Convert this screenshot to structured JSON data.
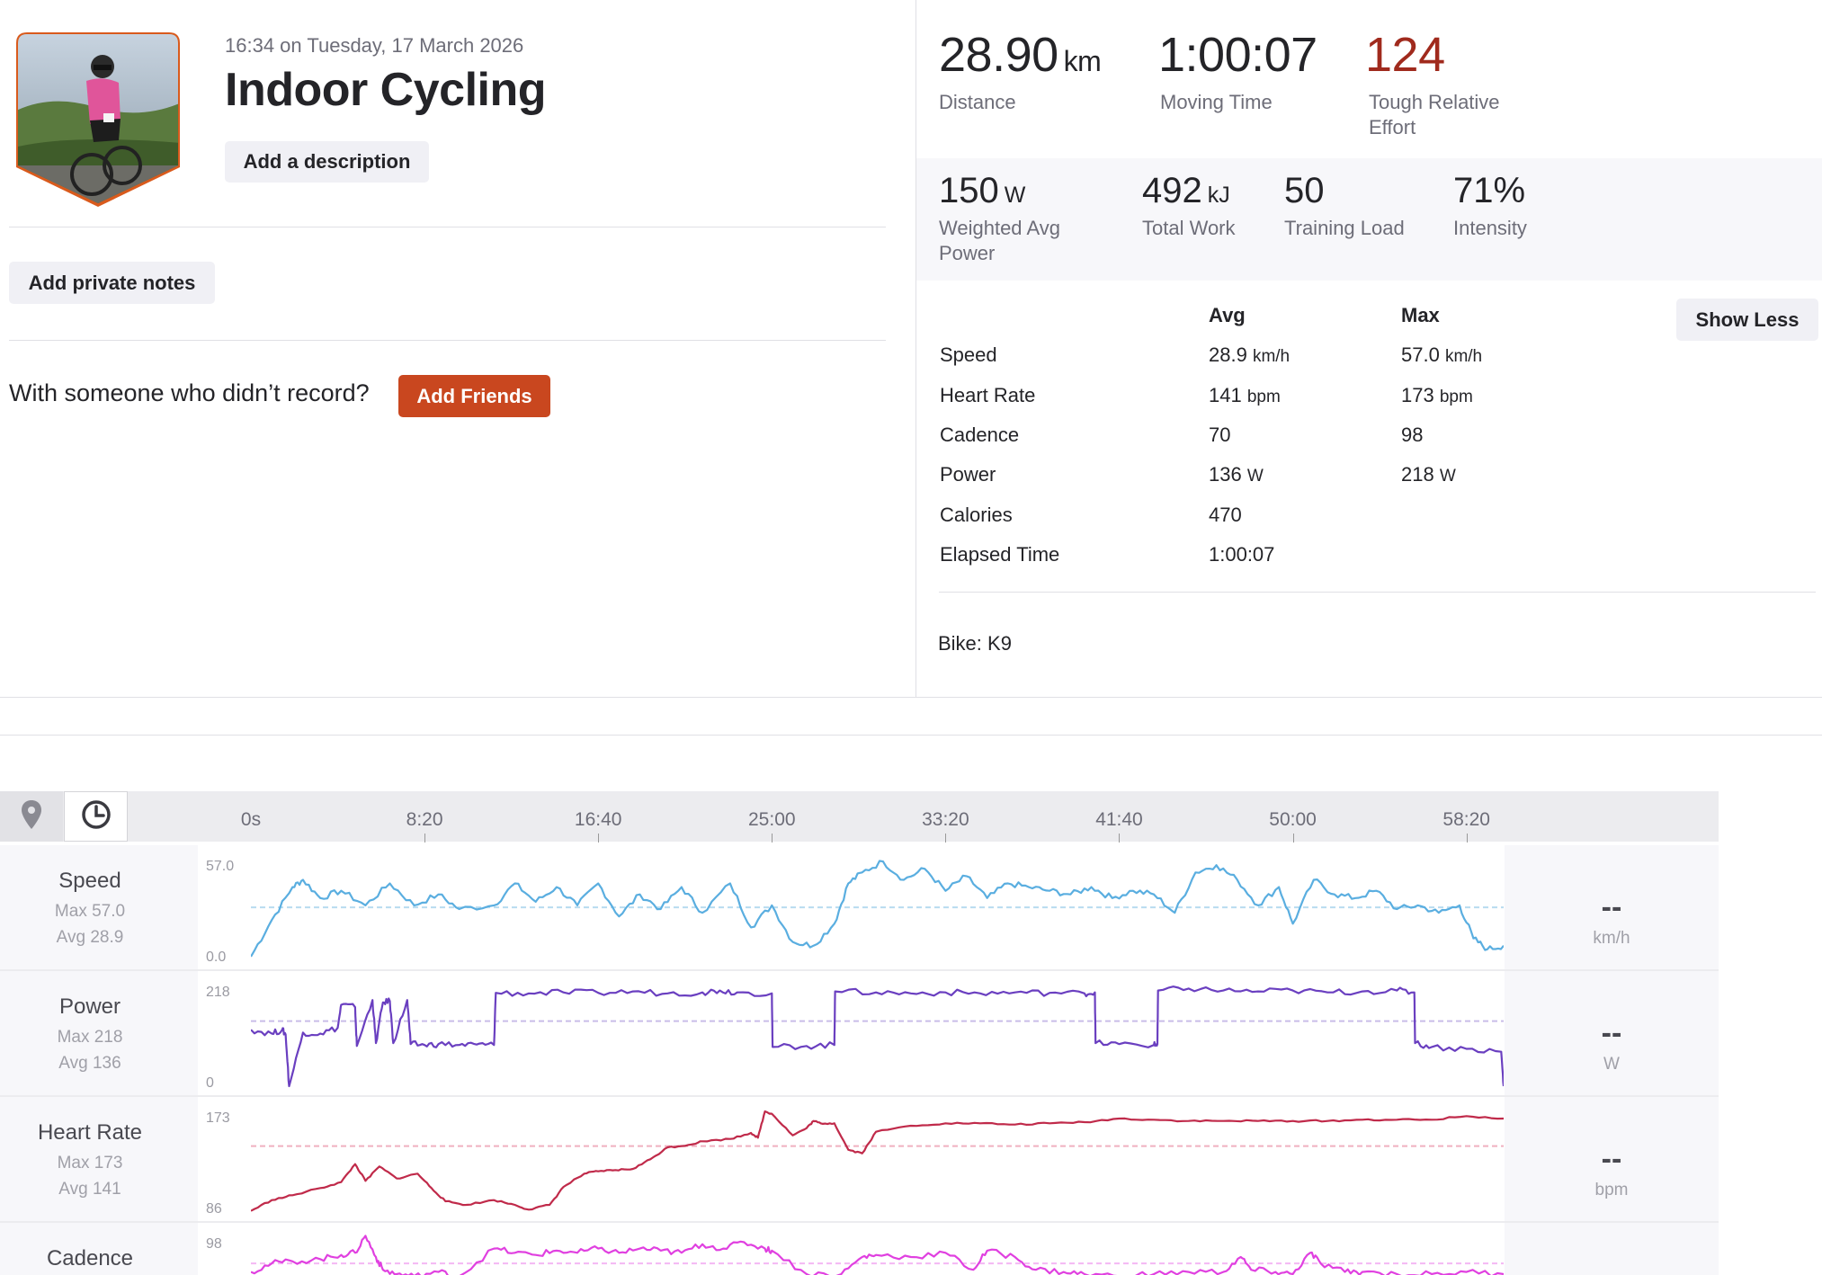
{
  "activity": {
    "datetime": "16:34 on Tuesday, 17 March 2026",
    "title": "Indoor Cycling",
    "add_description_label": "Add a description",
    "add_private_notes_label": "Add private notes",
    "friends_prompt": "With someone who didn’t record?",
    "add_friends_label": "Add Friends"
  },
  "primary_stats": [
    {
      "value": "28.90",
      "unit": "km",
      "label": "Distance"
    },
    {
      "value": "1:00:07",
      "unit": "",
      "label": "Moving Time"
    },
    {
      "value": "124",
      "unit": "",
      "label": "Tough Relative Effort",
      "color": "#a02a1d"
    }
  ],
  "secondary_stats": [
    {
      "value": "150",
      "unit": "W",
      "label": "Weighted Avg Power"
    },
    {
      "value": "492",
      "unit": "kJ",
      "label": "Total Work"
    },
    {
      "value": "50",
      "unit": "",
      "label": "Training Load"
    },
    {
      "value": "71%",
      "unit": "",
      "label": "Intensity"
    }
  ],
  "details_table": {
    "avg_header": "Avg",
    "max_header": "Max",
    "show_less_label": "Show Less",
    "rows": [
      {
        "label": "Speed",
        "avg": "28.9",
        "avg_unit": "km/h",
        "max": "57.0",
        "max_unit": "km/h"
      },
      {
        "label": "Heart Rate",
        "avg": "141",
        "avg_unit": "bpm",
        "max": "173",
        "max_unit": "bpm"
      },
      {
        "label": "Cadence",
        "avg": "70",
        "avg_unit": "",
        "max": "98",
        "max_unit": ""
      },
      {
        "label": "Power",
        "avg": "136",
        "avg_unit": "W",
        "max": "218",
        "max_unit": "W"
      },
      {
        "label": "Calories",
        "avg": "470",
        "avg_unit": "",
        "max": "",
        "max_unit": ""
      },
      {
        "label": "Elapsed Time",
        "avg": "1:00:07",
        "avg_unit": "",
        "max": "",
        "max_unit": ""
      }
    ],
    "bike": "Bike: K9"
  },
  "chart_toolbar": {
    "icons": [
      "map-pin-icon",
      "clock-icon"
    ]
  },
  "chart_data": {
    "type": "line",
    "x_unit": "elapsed time (s)",
    "x_range": [
      0,
      3607
    ],
    "x_tick_labels": [
      "0s",
      "8:20",
      "16:40",
      "25:00",
      "33:20",
      "41:40",
      "50:00",
      "58:20"
    ],
    "x_ticks": [
      0,
      500,
      1000,
      1500,
      2000,
      2500,
      3000,
      3500
    ],
    "series": [
      {
        "name": "Speed",
        "max_label": "Max 57.0",
        "avg_label": "Avg 28.9",
        "ymin": 0.0,
        "ymax": 57.0,
        "ymin_label": "0.0",
        "ymax_label": "57.0",
        "avg": 28.9,
        "unit": "km/h",
        "current": "--",
        "color": "#5aaee0",
        "avg_color": "#b8dcf0",
        "x": [
          0,
          60,
          120,
          150,
          200,
          260,
          330,
          400,
          470,
          540,
          600,
          700,
          760,
          820,
          880,
          940,
          1000,
          1060,
          1120,
          1180,
          1240,
          1300,
          1380,
          1440,
          1500,
          1560,
          1620,
          1680,
          1720,
          1760,
          1820,
          1880,
          1940,
          2000,
          2060,
          2120,
          2180,
          2240,
          2300,
          2360,
          2420,
          2480,
          2540,
          2600,
          2660,
          2720,
          2780,
          2840,
          2900,
          2960,
          3000,
          3060,
          3120,
          3180,
          3240,
          3300,
          3360,
          3420,
          3480,
          3520,
          3560,
          3607
        ],
        "y": [
          2,
          22,
          40,
          44,
          34,
          38,
          30,
          42,
          30,
          36,
          28,
          30,
          42,
          32,
          40,
          30,
          42,
          24,
          36,
          28,
          40,
          26,
          42,
          18,
          30,
          10,
          8,
          20,
          42,
          48,
          54,
          44,
          50,
          38,
          46,
          34,
          42,
          40,
          38,
          36,
          40,
          34,
          38,
          36,
          26,
          48,
          52,
          44,
          30,
          40,
          20,
          44,
          36,
          34,
          38,
          28,
          30,
          26,
          30,
          12,
          6,
          8
        ]
      },
      {
        "name": "Power",
        "max_label": "Max 218",
        "avg_label": "Avg 136",
        "ymin": 0,
        "ymax": 218,
        "ymin_label": "0",
        "ymax_label": "218",
        "avg": 136,
        "unit": "W",
        "current": "--",
        "color": "#6a3fc0",
        "avg_color": "#c9bde8",
        "x": [
          0,
          60,
          90,
          100,
          110,
          150,
          200,
          250,
          260,
          300,
          305,
          350,
          360,
          380,
          400,
          410,
          450,
          460,
          500,
          540,
          600,
          650,
          700,
          705,
          800,
          900,
          1000,
          1100,
          1200,
          1300,
          1350,
          1400,
          1500,
          1502,
          1600,
          1680,
          1682,
          1800,
          1900,
          2000,
          2100,
          2200,
          2300,
          2400,
          2430,
          2432,
          2500,
          2600,
          2610,
          2612,
          2700,
          2800,
          2900,
          3000,
          3100,
          3200,
          3300,
          3350,
          3352,
          3400,
          3500,
          3600,
          3607
        ],
        "y": [
          118,
          110,
          118,
          108,
          0,
          112,
          110,
          122,
          170,
          165,
          84,
          180,
          90,
          175,
          178,
          90,
          180,
          88,
          86,
          88,
          86,
          87,
          86,
          195,
          194,
          196,
          195,
          198,
          194,
          196,
          200,
          196,
          194,
          82,
          84,
          86,
          198,
          196,
          194,
          196,
          194,
          196,
          195,
          194,
          196,
          90,
          88,
          86,
          88,
          200,
          204,
          200,
          198,
          200,
          196,
          198,
          200,
          196,
          90,
          82,
          78,
          72,
          0
        ]
      },
      {
        "name": "Heart Rate",
        "max_label": "Max 173",
        "avg_label": "Avg 141",
        "ymin": 86,
        "ymax": 173,
        "ymin_label": "86",
        "ymax_label": "173",
        "avg": 141,
        "unit": "bpm",
        "current": "--",
        "color": "#c02a4a",
        "avg_color": "#f0b0c0",
        "x": [
          0,
          60,
          120,
          200,
          260,
          300,
          330,
          370,
          420,
          480,
          520,
          560,
          620,
          700,
          760,
          800,
          860,
          900,
          960,
          1000,
          1050,
          1100,
          1150,
          1200,
          1260,
          1300,
          1380,
          1440,
          1460,
          1480,
          1500,
          1560,
          1600,
          1620,
          1640,
          1680,
          1720,
          1760,
          1800,
          1900,
          2000,
          2100,
          2200,
          2300,
          2400,
          2500,
          2600,
          2700,
          2800,
          2900,
          3000,
          3100,
          3200,
          3300,
          3400,
          3500,
          3607
        ],
        "y": [
          87,
          96,
          100,
          106,
          111,
          126,
          112,
          124,
          114,
          118,
          106,
          95,
          92,
          96,
          92,
          88,
          92,
          107,
          118,
          120,
          121,
          122,
          130,
          140,
          142,
          145,
          147,
          152,
          148,
          170,
          168,
          150,
          156,
          162,
          160,
          160,
          138,
          135,
          153,
          158,
          160,
          160,
          159,
          160,
          161,
          164,
          163,
          162,
          162,
          162,
          162,
          162,
          163,
          163,
          163,
          166,
          164
        ]
      },
      {
        "name": "Cadence",
        "max_label": "",
        "avg_label": "",
        "ymin": 0,
        "ymax": 98,
        "ymin_label": "",
        "ymax_label": "98",
        "avg": 70,
        "unit": "",
        "current": "",
        "color": "#e040e0",
        "avg_color": "#f4b8f4",
        "x": [
          0,
          60,
          120,
          200,
          260,
          300,
          330,
          360,
          380,
          420,
          470,
          540,
          600,
          700,
          760,
          820,
          880,
          940,
          1000,
          1060,
          1120,
          1180,
          1240,
          1300,
          1360,
          1420,
          1480,
          1500,
          1600,
          1700,
          1760,
          1800,
          1900,
          2000,
          2080,
          2120,
          2200,
          2260,
          2340,
          2400,
          2500,
          2600,
          2700,
          2800,
          2850,
          2880,
          2950,
          3000,
          3050,
          3080,
          3150,
          3200,
          3300,
          3400,
          3500,
          3607
        ],
        "y": [
          62,
          70,
          72,
          74,
          78,
          80,
          96,
          76,
          64,
          60,
          58,
          62,
          58,
          84,
          80,
          78,
          82,
          80,
          84,
          80,
          84,
          82,
          80,
          88,
          84,
          90,
          84,
          82,
          60,
          60,
          76,
          78,
          76,
          80,
          64,
          82,
          76,
          64,
          62,
          60,
          58,
          60,
          62,
          62,
          76,
          64,
          62,
          60,
          80,
          70,
          62,
          62,
          60,
          60,
          62,
          60
        ]
      }
    ]
  }
}
